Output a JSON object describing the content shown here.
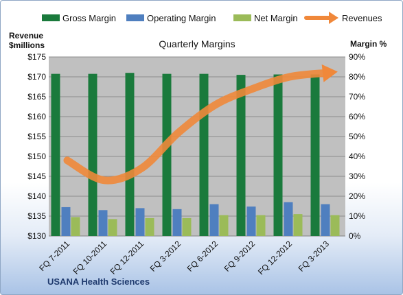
{
  "legend": {
    "gross": "Gross Margin",
    "operating": "Operating Margin",
    "net": "Net Margin",
    "revenues": "Revenues"
  },
  "left_axis_title": [
    "Revenue",
    "$millions"
  ],
  "right_axis_title": "Margin %",
  "footer": "USANA Health Sciences",
  "colors": {
    "gross": "#1a7a3c",
    "operating": "#4f7fbf",
    "net": "#9bbb59",
    "revenues": "#f0883a",
    "plot_bg": "#c0c0c0"
  },
  "chart_data": {
    "type": "bar",
    "title": "Quarterly Margins",
    "categories": [
      "FQ 7-2011",
      "FQ 10-2011",
      "FQ 12-2011",
      "FQ 3-2012",
      "FQ 6-2012",
      "FQ 9-2012",
      "FQ 12-2012",
      "FQ 3-2013"
    ],
    "series": [
      {
        "name": "Gross Margin",
        "axis": "right",
        "values": [
          81.5,
          81.5,
          82.0,
          81.5,
          81.5,
          81.0,
          81.2,
          81.2
        ]
      },
      {
        "name": "Operating Margin",
        "axis": "right",
        "values": [
          14.5,
          13.0,
          14.0,
          13.5,
          16.0,
          14.8,
          17.0,
          16.0
        ]
      },
      {
        "name": "Net Margin",
        "axis": "right",
        "values": [
          9.5,
          8.5,
          9.0,
          9.0,
          10.5,
          10.5,
          11.0,
          10.5
        ]
      },
      {
        "name": "Revenues",
        "axis": "left",
        "type": "line",
        "values": [
          149,
          144,
          147,
          156,
          163,
          167,
          170,
          171
        ]
      }
    ],
    "y_left": {
      "label": "Revenue $millions",
      "range": [
        130,
        175
      ],
      "ticks": [
        "$130",
        "$135",
        "$140",
        "$145",
        "$150",
        "$155",
        "$160",
        "$165",
        "$170",
        "$175"
      ]
    },
    "y_right": {
      "label": "Margin %",
      "range": [
        0,
        90
      ],
      "ticks": [
        "0%",
        "10%",
        "20%",
        "30%",
        "40%",
        "50%",
        "60%",
        "70%",
        "80%",
        "90%"
      ]
    },
    "grid": true,
    "legend_position": "top"
  }
}
